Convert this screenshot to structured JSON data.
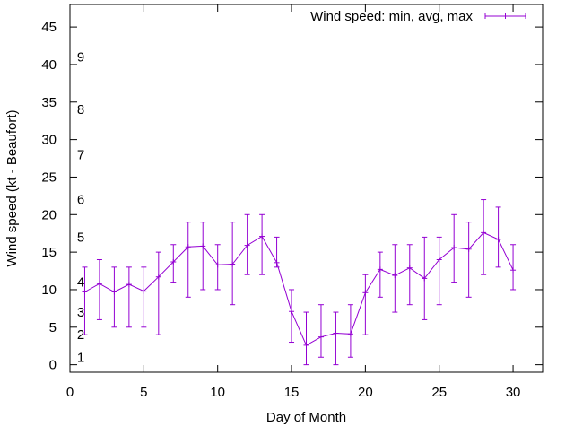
{
  "chart_data": {
    "type": "line",
    "subtype": "errorbars",
    "title": "",
    "xlabel": "Day of Month",
    "ylabel": "Wind speed (kt - Beaufort)",
    "xlim": [
      0,
      32
    ],
    "ylim": [
      -1,
      48
    ],
    "xticks": [
      0,
      5,
      10,
      15,
      20,
      25,
      30
    ],
    "yticks": [
      0,
      5,
      10,
      15,
      20,
      25,
      30,
      35,
      40,
      45
    ],
    "legend": {
      "label": "Wind speed: min, avg, max",
      "position": "top-right"
    },
    "series_color": "#9400d3",
    "beaufort_labels": [
      {
        "label": "1",
        "value": 1
      },
      {
        "label": "2",
        "value": 4
      },
      {
        "label": "3",
        "value": 7
      },
      {
        "label": "4",
        "value": 11
      },
      {
        "label": "5",
        "value": 17
      },
      {
        "label": "6",
        "value": 22
      },
      {
        "label": "7",
        "value": 28
      },
      {
        "label": "8",
        "value": 34
      },
      {
        "label": "9",
        "value": 41
      }
    ],
    "series": [
      {
        "name": "Wind speed: min, avg, max",
        "x": [
          1,
          2,
          3,
          4,
          5,
          6,
          7,
          8,
          9,
          10,
          11,
          12,
          13,
          14,
          15,
          16,
          17,
          18,
          19,
          20,
          21,
          22,
          23,
          24,
          25,
          26,
          27,
          28,
          29,
          30
        ],
        "avg": [
          9.7,
          10.8,
          9.7,
          10.7,
          9.8,
          11.7,
          13.7,
          15.7,
          15.8,
          13.3,
          13.4,
          15.9,
          17.1,
          13.6,
          7.1,
          2.6,
          3.7,
          4.2,
          4.1,
          9.6,
          12.7,
          11.9,
          12.9,
          11.5,
          14.0,
          15.6,
          15.4,
          17.6,
          16.7,
          12.6
        ],
        "min": [
          4,
          6,
          5,
          5,
          5,
          4,
          11,
          9,
          10,
          10,
          8,
          12,
          12,
          13,
          3,
          0,
          1,
          0,
          1,
          4,
          9,
          7,
          8,
          6,
          8,
          11,
          9,
          12,
          13,
          10
        ],
        "max": [
          13,
          14,
          13,
          13,
          13,
          15,
          16,
          19,
          19,
          16,
          19,
          20,
          20,
          17,
          10,
          7,
          8,
          7,
          8,
          12,
          15,
          16,
          16,
          17,
          17,
          20,
          19,
          22,
          21,
          16
        ]
      }
    ]
  }
}
